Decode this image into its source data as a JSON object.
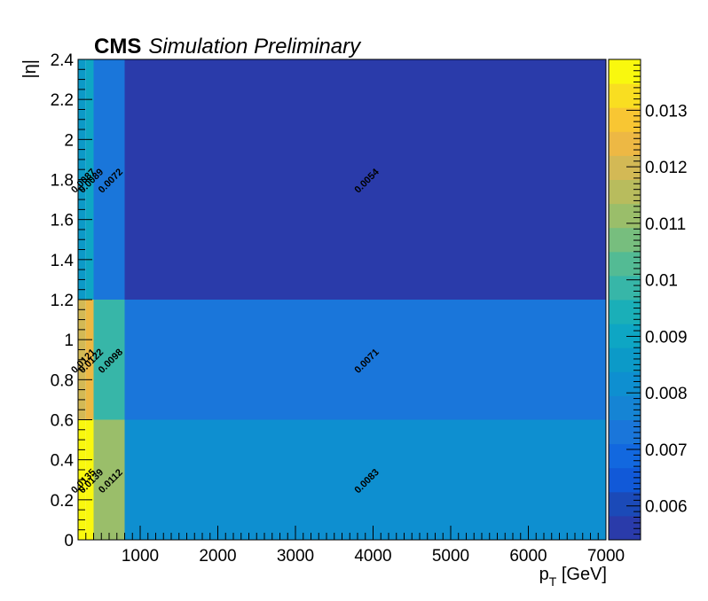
{
  "header": {
    "experiment": "CMS",
    "status": "Simulation Preliminary"
  },
  "axes": {
    "xlabel": "p",
    "xlabel_sub": "T",
    "xlabel_unit": " [GeV]",
    "ylabel": "|η|"
  },
  "colors": {
    "palette": [
      "#2a3baa",
      "#1b4ab8",
      "#1159d8",
      "#1268df",
      "#1a76da",
      "#1584d4",
      "#0e8fd0",
      "#0c9ac8",
      "#0ea6c4",
      "#1aafb8",
      "#37b6a8",
      "#53bb94",
      "#77be7e",
      "#9abe6a",
      "#b8bc5d",
      "#d3b955",
      "#edb844",
      "#f8c633",
      "#f9de21",
      "#f9f80e"
    ]
  },
  "chart_data": {
    "type": "heatmap",
    "title": "",
    "xlabel": "p_T [GeV]",
    "ylabel": "|η|",
    "xlim": [
      200,
      7000
    ],
    "ylim": [
      0,
      2.4
    ],
    "zlim": [
      0.0054,
      0.0139
    ],
    "x_bins": [
      200,
      300,
      400,
      800,
      7000
    ],
    "y_bins": [
      0,
      0.6,
      1.2,
      2.4
    ],
    "values": [
      [
        0.0135,
        0.0139,
        0.0112,
        0.0083
      ],
      [
        0.0121,
        0.0122,
        0.0098,
        0.0071
      ],
      [
        0.0087,
        0.0089,
        0.0072,
        0.0054
      ]
    ],
    "cell_labels": [
      [
        "0.0135",
        "0.0139",
        "0.0112",
        "0.0083"
      ],
      [
        "0.0121",
        "0.0122",
        "0.0098",
        "0.0071"
      ],
      [
        "0.0087",
        "0.0089",
        "0.0072",
        "0.0054"
      ]
    ],
    "x_ticks": [
      1000,
      2000,
      3000,
      4000,
      5000,
      6000,
      7000
    ],
    "y_ticks": [
      0,
      0.2,
      0.4,
      0.6,
      0.8,
      1,
      1.2,
      1.4,
      1.6,
      1.8,
      2,
      2.2,
      2.4
    ],
    "y_tick_labels": [
      "0",
      "0.2",
      "0.4",
      "0.6",
      "0.8",
      "1",
      "1.2",
      "1.4",
      "1.6",
      "1.8",
      "2",
      "2.2",
      "2.4"
    ],
    "z_ticks": [
      0.006,
      0.007,
      0.008,
      0.009,
      0.01,
      0.011,
      0.012,
      0.013
    ],
    "z_tick_labels": [
      "0.006",
      "0.007",
      "0.008",
      "0.009",
      "0.01",
      "0.011",
      "0.012",
      "0.013"
    ],
    "colorbar": "right",
    "grid": false
  }
}
